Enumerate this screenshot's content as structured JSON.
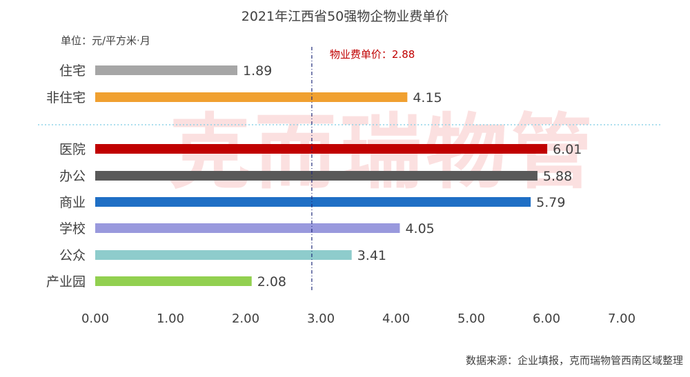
{
  "chart_data": {
    "type": "bar",
    "orientation": "horizontal",
    "title": "2021年江西省50强物企物业费单价",
    "unit_label": "单位：元/平方米·月",
    "categories": [
      "住宅",
      "非住宅",
      "医院",
      "办公",
      "商业",
      "学校",
      "公众",
      "产业园"
    ],
    "values": [
      1.89,
      4.15,
      6.01,
      5.88,
      5.79,
      4.05,
      3.41,
      2.08
    ],
    "value_labels": [
      "1.89",
      "4.15",
      "6.01",
      "5.88",
      "5.79",
      "4.05",
      "3.41",
      "2.08"
    ],
    "colors": [
      "#a6a6a6",
      "#f0a030",
      "#c00000",
      "#595959",
      "#1f6fc5",
      "#9999dd",
      "#8ecccc",
      "#92d050"
    ],
    "group_separator_after_index": 1,
    "xlim": [
      0,
      7
    ],
    "xticks": [
      "0.00",
      "1.00",
      "2.00",
      "3.00",
      "4.00",
      "5.00",
      "6.00",
      "7.00"
    ],
    "reference_line": {
      "value": 2.88,
      "label": "物业费单价：2.88",
      "color": "#1f2a7a"
    },
    "label_color": "#c00000",
    "watermark": "克而瑞物管",
    "source_note": "数据来源：企业填报，克而瑞物管西南区域整理",
    "grid": false,
    "legend": "none"
  }
}
